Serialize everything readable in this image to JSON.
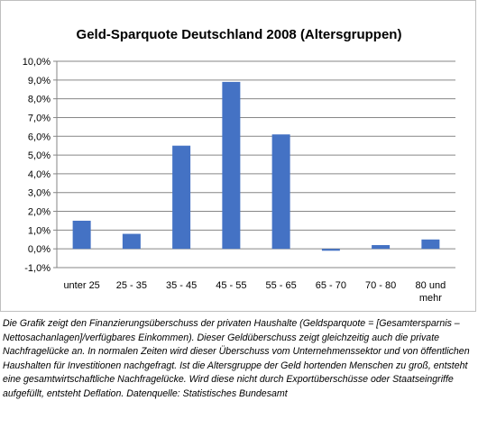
{
  "chart_data": {
    "type": "bar",
    "title": "Geld-Sparquote Deutschland 2008 (Altersgruppen)",
    "categories": [
      "unter 25",
      "25 - 35",
      "35 - 45",
      "45 - 55",
      "55 - 65",
      "65 - 70",
      "70 - 80",
      "80 und mehr"
    ],
    "values": [
      1.5,
      0.8,
      5.5,
      8.9,
      6.1,
      -0.1,
      0.2,
      0.5
    ],
    "value_unit": "%",
    "ylim": [
      -1.0,
      10.0
    ],
    "yticks": [
      "-1,0%",
      "0,0%",
      "1,0%",
      "2,0%",
      "3,0%",
      "4,0%",
      "5,0%",
      "6,0%",
      "7,0%",
      "8,0%",
      "9,0%",
      "10,0%"
    ],
    "grid": true,
    "legend": "none",
    "bar_color": "#4472C4"
  },
  "caption": "Die Grafik zeigt den Finanzierungsüberschuss der privaten Haushalte (Geldsparquote = [Gesamtersparnis – Nettosachanlagen]/verfügbares Einkommen). Dieser Geldüberschuss zeigt gleichzeitig auch die private Nachfragelücke an. In normalen Zeiten wird dieser Überschuss vom Unternehmenssektor und von öffentlichen Haushalten für Investitionen nachgefragt. Ist die Altersgruppe der Geld hortenden Menschen zu groß, entsteht eine gesamtwirtschaftliche Nachfragelücke. Wird diese nicht durch Exportüberschüsse oder Staatseingriffe aufgefüllt, entsteht Deflation. Datenquelle: Statistisches Bundesamt"
}
